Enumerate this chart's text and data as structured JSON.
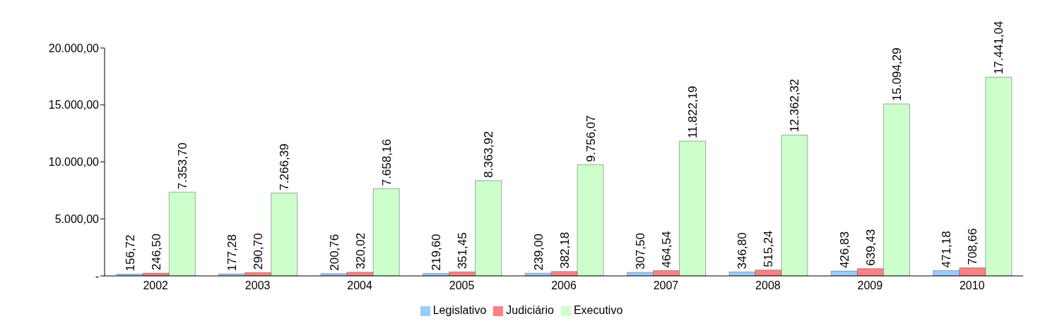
{
  "chart_data": {
    "type": "bar",
    "categories": [
      "2002",
      "2003",
      "2004",
      "2005",
      "2006",
      "2007",
      "2008",
      "2009",
      "2010"
    ],
    "series": [
      {
        "name": "Legislativo",
        "color": "#99ccff",
        "values": [
          156.72,
          177.28,
          200.76,
          219.6,
          239.0,
          307.5,
          346.8,
          426.83,
          471.18
        ],
        "value_labels": [
          "156,72",
          "177,28",
          "200,76",
          "219,60",
          "239,00",
          "307,50",
          "346,80",
          "426,83",
          "471,18"
        ]
      },
      {
        "name": "Judiciário",
        "color": "#ff8080",
        "values": [
          246.5,
          290.7,
          320.02,
          351.45,
          382.18,
          464.54,
          515.24,
          639.43,
          708.66
        ],
        "value_labels": [
          "246,50",
          "290,70",
          "320,02",
          "351,45",
          "382,18",
          "464,54",
          "515,24",
          "639,43",
          "708,66"
        ]
      },
      {
        "name": "Executivo",
        "color": "#ccffcc",
        "values": [
          7353.7,
          7266.39,
          7658.16,
          8363.92,
          9756.07,
          11822.19,
          12362.32,
          15094.29,
          17441.04
        ],
        "value_labels": [
          "7.353,70",
          "7.266,39",
          "7.658,16",
          "8.363,92",
          "9.756,07",
          "11.822,19",
          "12.362,32",
          "15.094,29",
          "17.441,04"
        ]
      }
    ],
    "ylim": [
      0,
      20000
    ],
    "yticks": [
      {
        "value": 0,
        "label": "-"
      },
      {
        "value": 5000,
        "label": "5.000,00"
      },
      {
        "value": 10000,
        "label": "10.000,00"
      },
      {
        "value": 15000,
        "label": "15.000,00"
      },
      {
        "value": 20000,
        "label": "20.000,00"
      }
    ],
    "grid": false,
    "legend": "bottom"
  }
}
